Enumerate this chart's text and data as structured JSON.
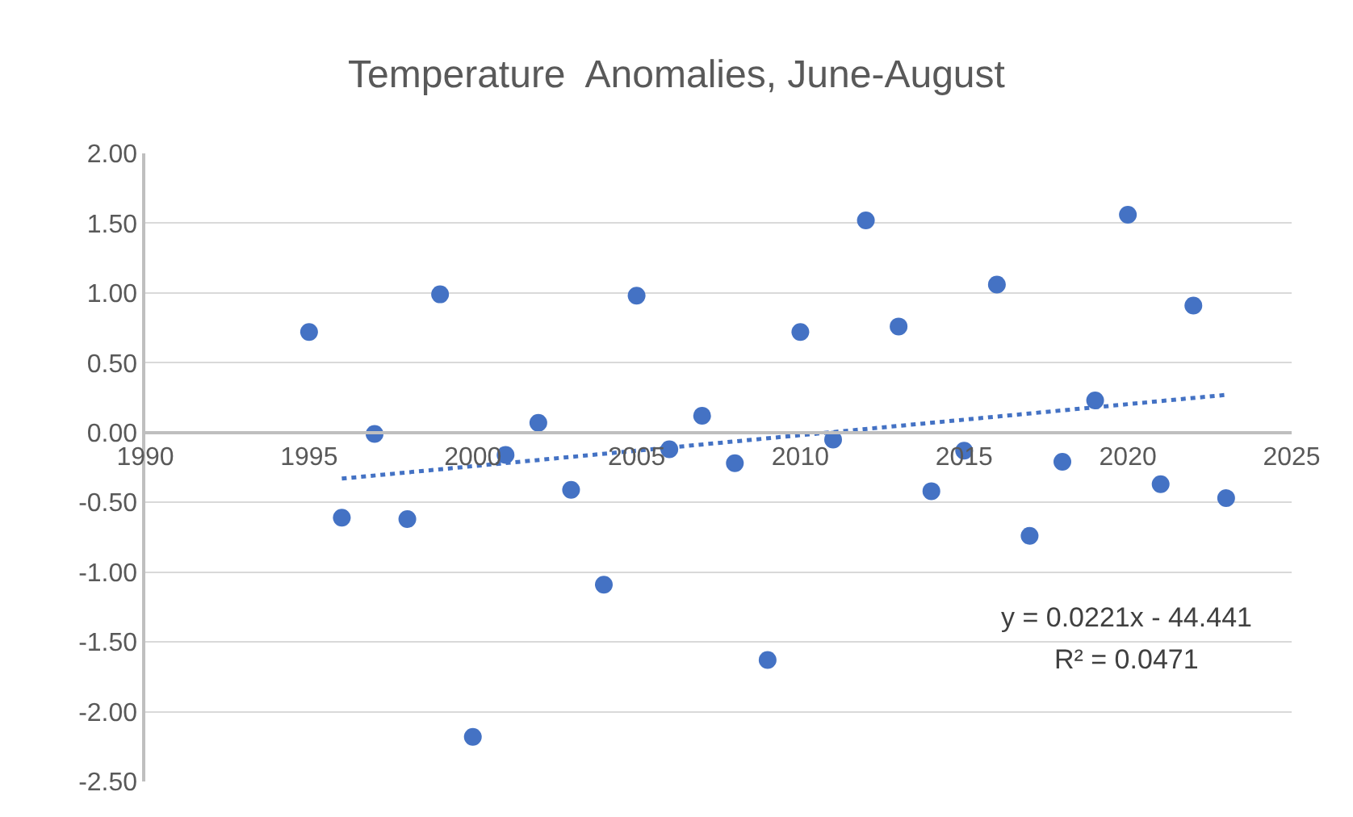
{
  "chart_data": {
    "type": "scatter",
    "title": "Temperature  Anomalies, June-August",
    "x": [
      1995,
      1996,
      1997,
      1998,
      1999,
      2000,
      2001,
      2002,
      2003,
      2004,
      2005,
      2006,
      2007,
      2008,
      2009,
      2010,
      2011,
      2012,
      2013,
      2014,
      2015,
      2016,
      2017,
      2018,
      2019,
      2020,
      2021,
      2022,
      2023
    ],
    "series": [
      {
        "color": "#4472c4",
        "marker": "circle",
        "values": [
          0.72,
          -0.61,
          -0.01,
          -0.62,
          0.99,
          -2.18,
          -0.16,
          0.07,
          -0.41,
          -1.09,
          0.98,
          -0.12,
          0.12,
          -0.22,
          -1.63,
          0.72,
          -0.05,
          1.52,
          0.76,
          -0.42,
          -0.13,
          1.06,
          -0.74,
          -0.21,
          0.23,
          1.56,
          -0.37,
          0.91,
          -0.47
        ]
      },
      {
        "type": "line",
        "color": "#4472c4",
        "line_style": "dotted",
        "x": [
          1996,
          2023
        ],
        "values": [
          -0.33,
          0.27
        ]
      }
    ],
    "xlim": [
      1990,
      2025
    ],
    "xticks": [
      1990,
      1995,
      2000,
      2005,
      2010,
      2015,
      2020,
      2025
    ],
    "ylim": [
      -2.5,
      2.0
    ],
    "yticks": [
      {
        "value": -2.5,
        "label": "-2.50"
      },
      {
        "value": -2.0,
        "label": "-2.00"
      },
      {
        "value": -1.5,
        "label": "-1.50"
      },
      {
        "value": -1.0,
        "label": "-1.00"
      },
      {
        "value": -0.5,
        "label": "-0.50"
      },
      {
        "value": 0,
        "label": "0.00"
      },
      {
        "value": 0.5,
        "label": "0.50"
      },
      {
        "value": 1.0,
        "label": "1.00"
      },
      {
        "value": 1.5,
        "label": "1.50"
      },
      {
        "value": 2.0,
        "label": "2.00"
      }
    ],
    "grid": "y",
    "legend": false,
    "annotations": [
      "y = 0.0221x - 44.441",
      "R² = 0.0471"
    ]
  }
}
